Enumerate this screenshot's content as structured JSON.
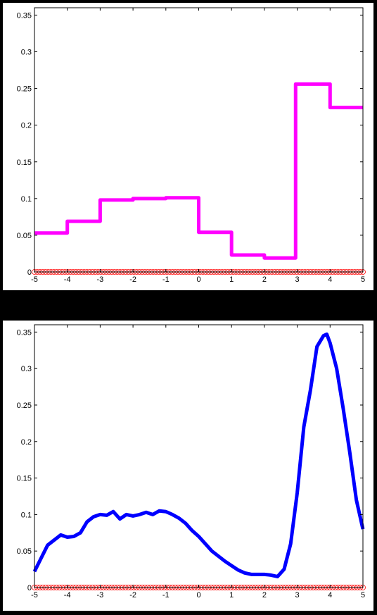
{
  "chart_data": [
    {
      "type": "line",
      "subtype": "step",
      "xlim": [
        -5,
        5
      ],
      "ylim": [
        0,
        0.36
      ],
      "xticks": [
        "-5",
        "-4",
        "-3",
        "-2",
        "-1",
        "0",
        "1",
        "2",
        "3",
        "4",
        "5"
      ],
      "yticks": [
        "0",
        "0.05",
        "0.1",
        "0.15",
        "0.2",
        "0.25",
        "0.3",
        "0.35"
      ],
      "grid": false,
      "series": [
        {
          "color": "#ff00ff",
          "x": [
            -5,
            -4,
            -4,
            -3,
            -3,
            -2,
            -2,
            -1,
            -1,
            0,
            0,
            1,
            1,
            2,
            2,
            2.95,
            2.95,
            4,
            4,
            5
          ],
          "y": [
            0.053,
            0.053,
            0.069,
            0.069,
            0.098,
            0.098,
            0.1,
            0.1,
            0.101,
            0.101,
            0.054,
            0.054,
            0.023,
            0.023,
            0.019,
            0.019,
            0.256,
            0.256,
            0.224,
            0.224
          ]
        }
      ],
      "sample_markers": {
        "color": "#ff0000",
        "y": 0,
        "x_range": [
          -5,
          5
        ],
        "count": 120
      }
    },
    {
      "type": "line",
      "xlim": [
        -5,
        5
      ],
      "ylim": [
        0,
        0.36
      ],
      "xticks": [
        "-5",
        "-4",
        "-3",
        "-2",
        "-1",
        "0",
        "1",
        "2",
        "3",
        "4",
        "5"
      ],
      "yticks": [
        "0",
        "0.05",
        "0.1",
        "0.15",
        "0.2",
        "0.25",
        "0.3",
        "0.35"
      ],
      "grid": false,
      "series": [
        {
          "color": "#0000ff",
          "x": [
            -5,
            -4.8,
            -4.6,
            -4.4,
            -4.2,
            -4.0,
            -3.8,
            -3.6,
            -3.4,
            -3.2,
            -3.0,
            -2.8,
            -2.6,
            -2.4,
            -2.2,
            -2.0,
            -1.8,
            -1.6,
            -1.4,
            -1.2,
            -1.0,
            -0.8,
            -0.6,
            -0.4,
            -0.2,
            0.0,
            0.2,
            0.4,
            0.6,
            0.8,
            1.0,
            1.2,
            1.4,
            1.6,
            1.8,
            2.0,
            2.2,
            2.4,
            2.6,
            2.8,
            3.0,
            3.2,
            3.4,
            3.6,
            3.8,
            3.9,
            4.0,
            4.2,
            4.4,
            4.6,
            4.8,
            5.0
          ],
          "y": [
            0.022,
            0.04,
            0.058,
            0.065,
            0.072,
            0.069,
            0.07,
            0.075,
            0.09,
            0.097,
            0.1,
            0.099,
            0.104,
            0.094,
            0.1,
            0.098,
            0.1,
            0.103,
            0.1,
            0.105,
            0.104,
            0.1,
            0.095,
            0.088,
            0.078,
            0.07,
            0.06,
            0.05,
            0.043,
            0.036,
            0.03,
            0.024,
            0.02,
            0.018,
            0.018,
            0.018,
            0.017,
            0.015,
            0.025,
            0.06,
            0.13,
            0.22,
            0.27,
            0.33,
            0.345,
            0.347,
            0.335,
            0.3,
            0.245,
            0.185,
            0.12,
            0.08
          ]
        }
      ],
      "sample_markers": {
        "color": "#ff0000",
        "y": 0,
        "x_range": [
          -5,
          5
        ],
        "count": 120
      }
    }
  ]
}
